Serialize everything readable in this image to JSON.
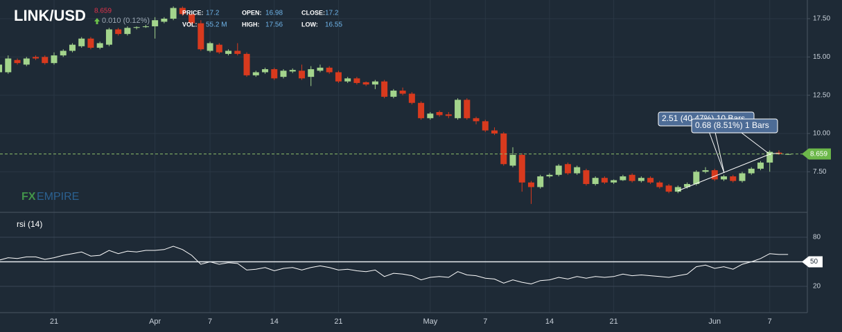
{
  "chart_data": [
    {
      "type": "candlestick",
      "title": "LINK/USD",
      "last": 8.659,
      "change": "0.010 (0.12%)",
      "info": [
        {
          "label": "PRICE:",
          "value": "17.2"
        },
        {
          "label": "VOL:",
          "value": "55.2 M"
        },
        {
          "label": "OPEN:",
          "value": "16.98"
        },
        {
          "label": "HIGH:",
          "value": "17.56"
        },
        {
          "label": "CLOSE:",
          "value": "17.2"
        },
        {
          "label": "LOW:",
          "value": "16.55"
        }
      ],
      "watermark": [
        "FX",
        "EMPIRE"
      ],
      "annotations": [
        "2.51 (40.47%) 10 Bars",
        "0.68 (8.51%) 1 Bars"
      ],
      "up_color": "#a3d48c",
      "down_color": "#d83a1e",
      "ylim": [
        4.94,
        18.72
      ],
      "yticks": [
        {
          "value": 17.5,
          "label": "17.50"
        },
        {
          "value": 15,
          "label": "15.00"
        },
        {
          "value": 12.5,
          "label": "12.50"
        },
        {
          "value": 10,
          "label": "10.00"
        },
        {
          "value": 7.5,
          "label": "7.50"
        }
      ],
      "grid": true,
      "categories": [
        null,
        null,
        null,
        null,
        null,
        null,
        "21",
        null,
        null,
        null,
        null,
        null,
        null,
        null,
        null,
        null,
        null,
        "Apr",
        null,
        null,
        null,
        null,
        null,
        "7",
        null,
        null,
        null,
        null,
        null,
        null,
        "14",
        null,
        null,
        null,
        null,
        null,
        null,
        "21",
        null,
        null,
        null,
        null,
        null,
        null,
        null,
        null,
        null,
        "May",
        null,
        null,
        null,
        null,
        null,
        "7",
        null,
        null,
        null,
        null,
        null,
        null,
        "14",
        null,
        null,
        null,
        null,
        null,
        null,
        "21",
        null,
        null,
        null,
        null,
        null,
        null,
        null,
        null,
        null,
        null,
        "Jun",
        null,
        null,
        null,
        null,
        null,
        "7",
        null,
        null
      ],
      "candles": [
        {
          "open": 14.0,
          "high": 14.6,
          "low": 13.9,
          "close": 14.5
        },
        {
          "open": 14.0,
          "high": 15.1,
          "low": 13.9,
          "close": 14.9
        },
        {
          "open": 14.8,
          "high": 14.9,
          "low": 14.5,
          "close": 14.6
        },
        {
          "open": 14.5,
          "high": 15.0,
          "low": 14.4,
          "close": 14.9
        },
        {
          "open": 15.0,
          "high": 15.1,
          "low": 14.8,
          "close": 14.9
        },
        {
          "open": 15.0,
          "high": 15.1,
          "low": 14.5,
          "close": 14.6
        },
        {
          "open": 14.6,
          "high": 15.3,
          "low": 14.5,
          "close": 15.1
        },
        {
          "open": 15.1,
          "high": 15.5,
          "low": 15.0,
          "close": 15.4
        },
        {
          "open": 15.4,
          "high": 15.9,
          "low": 15.3,
          "close": 15.8
        },
        {
          "open": 15.7,
          "high": 16.3,
          "low": 15.6,
          "close": 16.2
        },
        {
          "open": 16.2,
          "high": 16.3,
          "low": 15.5,
          "close": 15.6
        },
        {
          "open": 15.6,
          "high": 16.0,
          "low": 15.5,
          "close": 15.9
        },
        {
          "open": 15.8,
          "high": 16.9,
          "low": 15.7,
          "close": 16.8
        },
        {
          "open": 16.8,
          "high": 16.9,
          "low": 16.4,
          "close": 16.5
        },
        {
          "open": 16.5,
          "high": 17.0,
          "low": 16.4,
          "close": 16.9
        },
        {
          "open": 16.9,
          "high": 17.0,
          "low": 16.8,
          "close": 16.95
        },
        {
          "open": 16.95,
          "high": 17.1,
          "low": 16.9,
          "close": 17.0
        },
        {
          "open": 17.0,
          "high": 17.6,
          "low": 16.2,
          "close": 17.4
        },
        {
          "open": 17.3,
          "high": 17.6,
          "low": 17.2,
          "close": 17.5
        },
        {
          "open": 17.5,
          "high": 18.3,
          "low": 17.4,
          "close": 18.2
        },
        {
          "open": 18.2,
          "high": 18.3,
          "low": 17.7,
          "close": 17.8
        },
        {
          "open": 17.8,
          "high": 17.9,
          "low": 17.1,
          "close": 17.2
        },
        {
          "open": 17.2,
          "high": 17.4,
          "low": 15.4,
          "close": 15.5
        },
        {
          "open": 15.4,
          "high": 16.0,
          "low": 15.3,
          "close": 15.9
        },
        {
          "open": 15.8,
          "high": 15.9,
          "low": 15.2,
          "close": 15.3
        },
        {
          "open": 15.2,
          "high": 15.5,
          "low": 15.1,
          "close": 15.4
        },
        {
          "open": 15.4,
          "high": 15.9,
          "low": 15.1,
          "close": 15.2
        },
        {
          "open": 15.2,
          "high": 15.3,
          "low": 13.7,
          "close": 13.8
        },
        {
          "open": 13.8,
          "high": 14.1,
          "low": 13.7,
          "close": 14.0
        },
        {
          "open": 14.0,
          "high": 14.3,
          "low": 13.9,
          "close": 14.2
        },
        {
          "open": 14.2,
          "high": 14.3,
          "low": 13.5,
          "close": 13.6
        },
        {
          "open": 13.7,
          "high": 14.2,
          "low": 13.6,
          "close": 14.1
        },
        {
          "open": 14.05,
          "high": 14.25,
          "low": 13.95,
          "close": 14.15
        },
        {
          "open": 14.1,
          "high": 14.5,
          "low": 13.5,
          "close": 13.6
        },
        {
          "open": 13.7,
          "high": 14.4,
          "low": 13.1,
          "close": 14.2
        },
        {
          "open": 14.1,
          "high": 14.5,
          "low": 14.0,
          "close": 14.3
        },
        {
          "open": 14.3,
          "high": 14.4,
          "low": 13.9,
          "close": 14.0
        },
        {
          "open": 14.0,
          "high": 14.1,
          "low": 13.3,
          "close": 13.4
        },
        {
          "open": 13.4,
          "high": 13.7,
          "low": 13.3,
          "close": 13.6
        },
        {
          "open": 13.6,
          "high": 13.7,
          "low": 13.2,
          "close": 13.3
        },
        {
          "open": 13.35,
          "high": 13.4,
          "low": 13.1,
          "close": 13.2
        },
        {
          "open": 13.2,
          "high": 13.5,
          "low": 12.9,
          "close": 13.4
        },
        {
          "open": 13.4,
          "high": 13.5,
          "low": 12.3,
          "close": 12.4
        },
        {
          "open": 12.4,
          "high": 12.9,
          "low": 12.3,
          "close": 12.8
        },
        {
          "open": 12.8,
          "high": 13.0,
          "low": 12.5,
          "close": 12.6
        },
        {
          "open": 12.6,
          "high": 12.7,
          "low": 11.9,
          "close": 12.0
        },
        {
          "open": 12.0,
          "high": 12.1,
          "low": 10.9,
          "close": 11.0
        },
        {
          "open": 11.0,
          "high": 11.4,
          "low": 10.9,
          "close": 11.3
        },
        {
          "open": 11.4,
          "high": 11.5,
          "low": 11.1,
          "close": 11.2
        },
        {
          "open": 11.25,
          "high": 11.4,
          "low": 11.0,
          "close": 11.15
        },
        {
          "open": 11.0,
          "high": 12.3,
          "low": 10.9,
          "close": 12.2
        },
        {
          "open": 12.2,
          "high": 12.3,
          "low": 10.9,
          "close": 11.0
        },
        {
          "open": 11.0,
          "high": 11.1,
          "low": 10.6,
          "close": 10.8
        },
        {
          "open": 10.8,
          "high": 10.9,
          "low": 10.1,
          "close": 10.2
        },
        {
          "open": 10.2,
          "high": 10.4,
          "low": 9.9,
          "close": 10.0
        },
        {
          "open": 10.0,
          "high": 10.1,
          "low": 7.9,
          "close": 8.0
        },
        {
          "open": 7.9,
          "high": 9.1,
          "low": 7.8,
          "close": 8.6
        },
        {
          "open": 8.6,
          "high": 8.7,
          "low": 6.2,
          "close": 6.8
        },
        {
          "open": 6.8,
          "high": 6.9,
          "low": 5.4,
          "close": 6.5
        },
        {
          "open": 6.5,
          "high": 7.3,
          "low": 6.4,
          "close": 7.2
        },
        {
          "open": 7.2,
          "high": 7.4,
          "low": 7.1,
          "close": 7.3
        },
        {
          "open": 7.3,
          "high": 8.0,
          "low": 7.2,
          "close": 7.9
        },
        {
          "open": 8.0,
          "high": 8.1,
          "low": 7.3,
          "close": 7.4
        },
        {
          "open": 7.4,
          "high": 7.9,
          "low": 7.3,
          "close": 7.8
        },
        {
          "open": 7.6,
          "high": 7.7,
          "low": 6.6,
          "close": 6.7
        },
        {
          "open": 6.7,
          "high": 7.2,
          "low": 6.6,
          "close": 7.1
        },
        {
          "open": 7.1,
          "high": 7.2,
          "low": 6.7,
          "close": 6.8
        },
        {
          "open": 6.8,
          "high": 7.0,
          "low": 6.7,
          "close": 6.95
        },
        {
          "open": 6.95,
          "high": 7.3,
          "low": 6.9,
          "close": 7.2
        },
        {
          "open": 7.3,
          "high": 7.4,
          "low": 6.8,
          "close": 6.9
        },
        {
          "open": 6.9,
          "high": 7.2,
          "low": 6.8,
          "close": 7.1
        },
        {
          "open": 7.1,
          "high": 7.2,
          "low": 6.7,
          "close": 6.8
        },
        {
          "open": 6.8,
          "high": 6.9,
          "low": 6.4,
          "close": 6.5
        },
        {
          "open": 6.6,
          "high": 6.7,
          "low": 6.1,
          "close": 6.2
        },
        {
          "open": 6.2,
          "high": 6.6,
          "low": 6.1,
          "close": 6.5
        },
        {
          "open": 6.5,
          "high": 6.8,
          "low": 6.4,
          "close": 6.7
        },
        {
          "open": 6.7,
          "high": 7.6,
          "low": 6.6,
          "close": 7.5
        },
        {
          "open": 7.5,
          "high": 7.8,
          "low": 7.4,
          "close": 7.6
        },
        {
          "open": 7.6,
          "high": 7.7,
          "low": 6.9,
          "close": 7.0
        },
        {
          "open": 7.0,
          "high": 7.3,
          "low": 6.9,
          "close": 7.2
        },
        {
          "open": 7.2,
          "high": 7.3,
          "low": 6.8,
          "close": 6.9
        },
        {
          "open": 6.9,
          "high": 7.5,
          "low": 6.8,
          "close": 7.4
        },
        {
          "open": 7.4,
          "high": 7.8,
          "low": 7.3,
          "close": 7.7
        },
        {
          "open": 7.7,
          "high": 8.2,
          "low": 7.6,
          "close": 8.1
        },
        {
          "open": 8.1,
          "high": 8.9,
          "low": 7.5,
          "close": 8.8
        },
        {
          "open": 8.75,
          "high": 8.9,
          "low": 8.6,
          "close": 8.66
        },
        {
          "open": 8.65,
          "high": 8.7,
          "low": 8.6,
          "close": 8.659
        }
      ]
    },
    {
      "type": "line",
      "title": "rsi (14)",
      "color": "#ffffff",
      "level": 50,
      "ylim": [
        -10.4,
        107.9
      ],
      "yticks": [
        80,
        20
      ],
      "values": [
        52,
        55,
        54,
        56,
        56,
        53,
        55,
        58,
        60,
        62,
        57,
        58,
        64,
        60,
        63,
        62,
        64,
        64,
        65,
        69,
        65,
        58,
        47,
        50,
        47,
        49,
        48,
        40,
        41,
        43,
        39,
        42,
        43,
        40,
        43,
        45,
        43,
        40,
        41,
        39,
        38,
        40,
        32,
        36,
        35,
        33,
        28,
        31,
        32,
        31,
        38,
        34,
        33,
        30,
        29,
        24,
        28,
        25,
        23,
        27,
        28,
        31,
        29,
        32,
        30,
        32,
        31,
        32,
        35,
        33,
        34,
        33,
        32,
        31,
        33,
        35,
        44,
        46,
        42,
        44,
        41,
        47,
        50,
        54,
        60,
        59,
        59
      ]
    }
  ]
}
